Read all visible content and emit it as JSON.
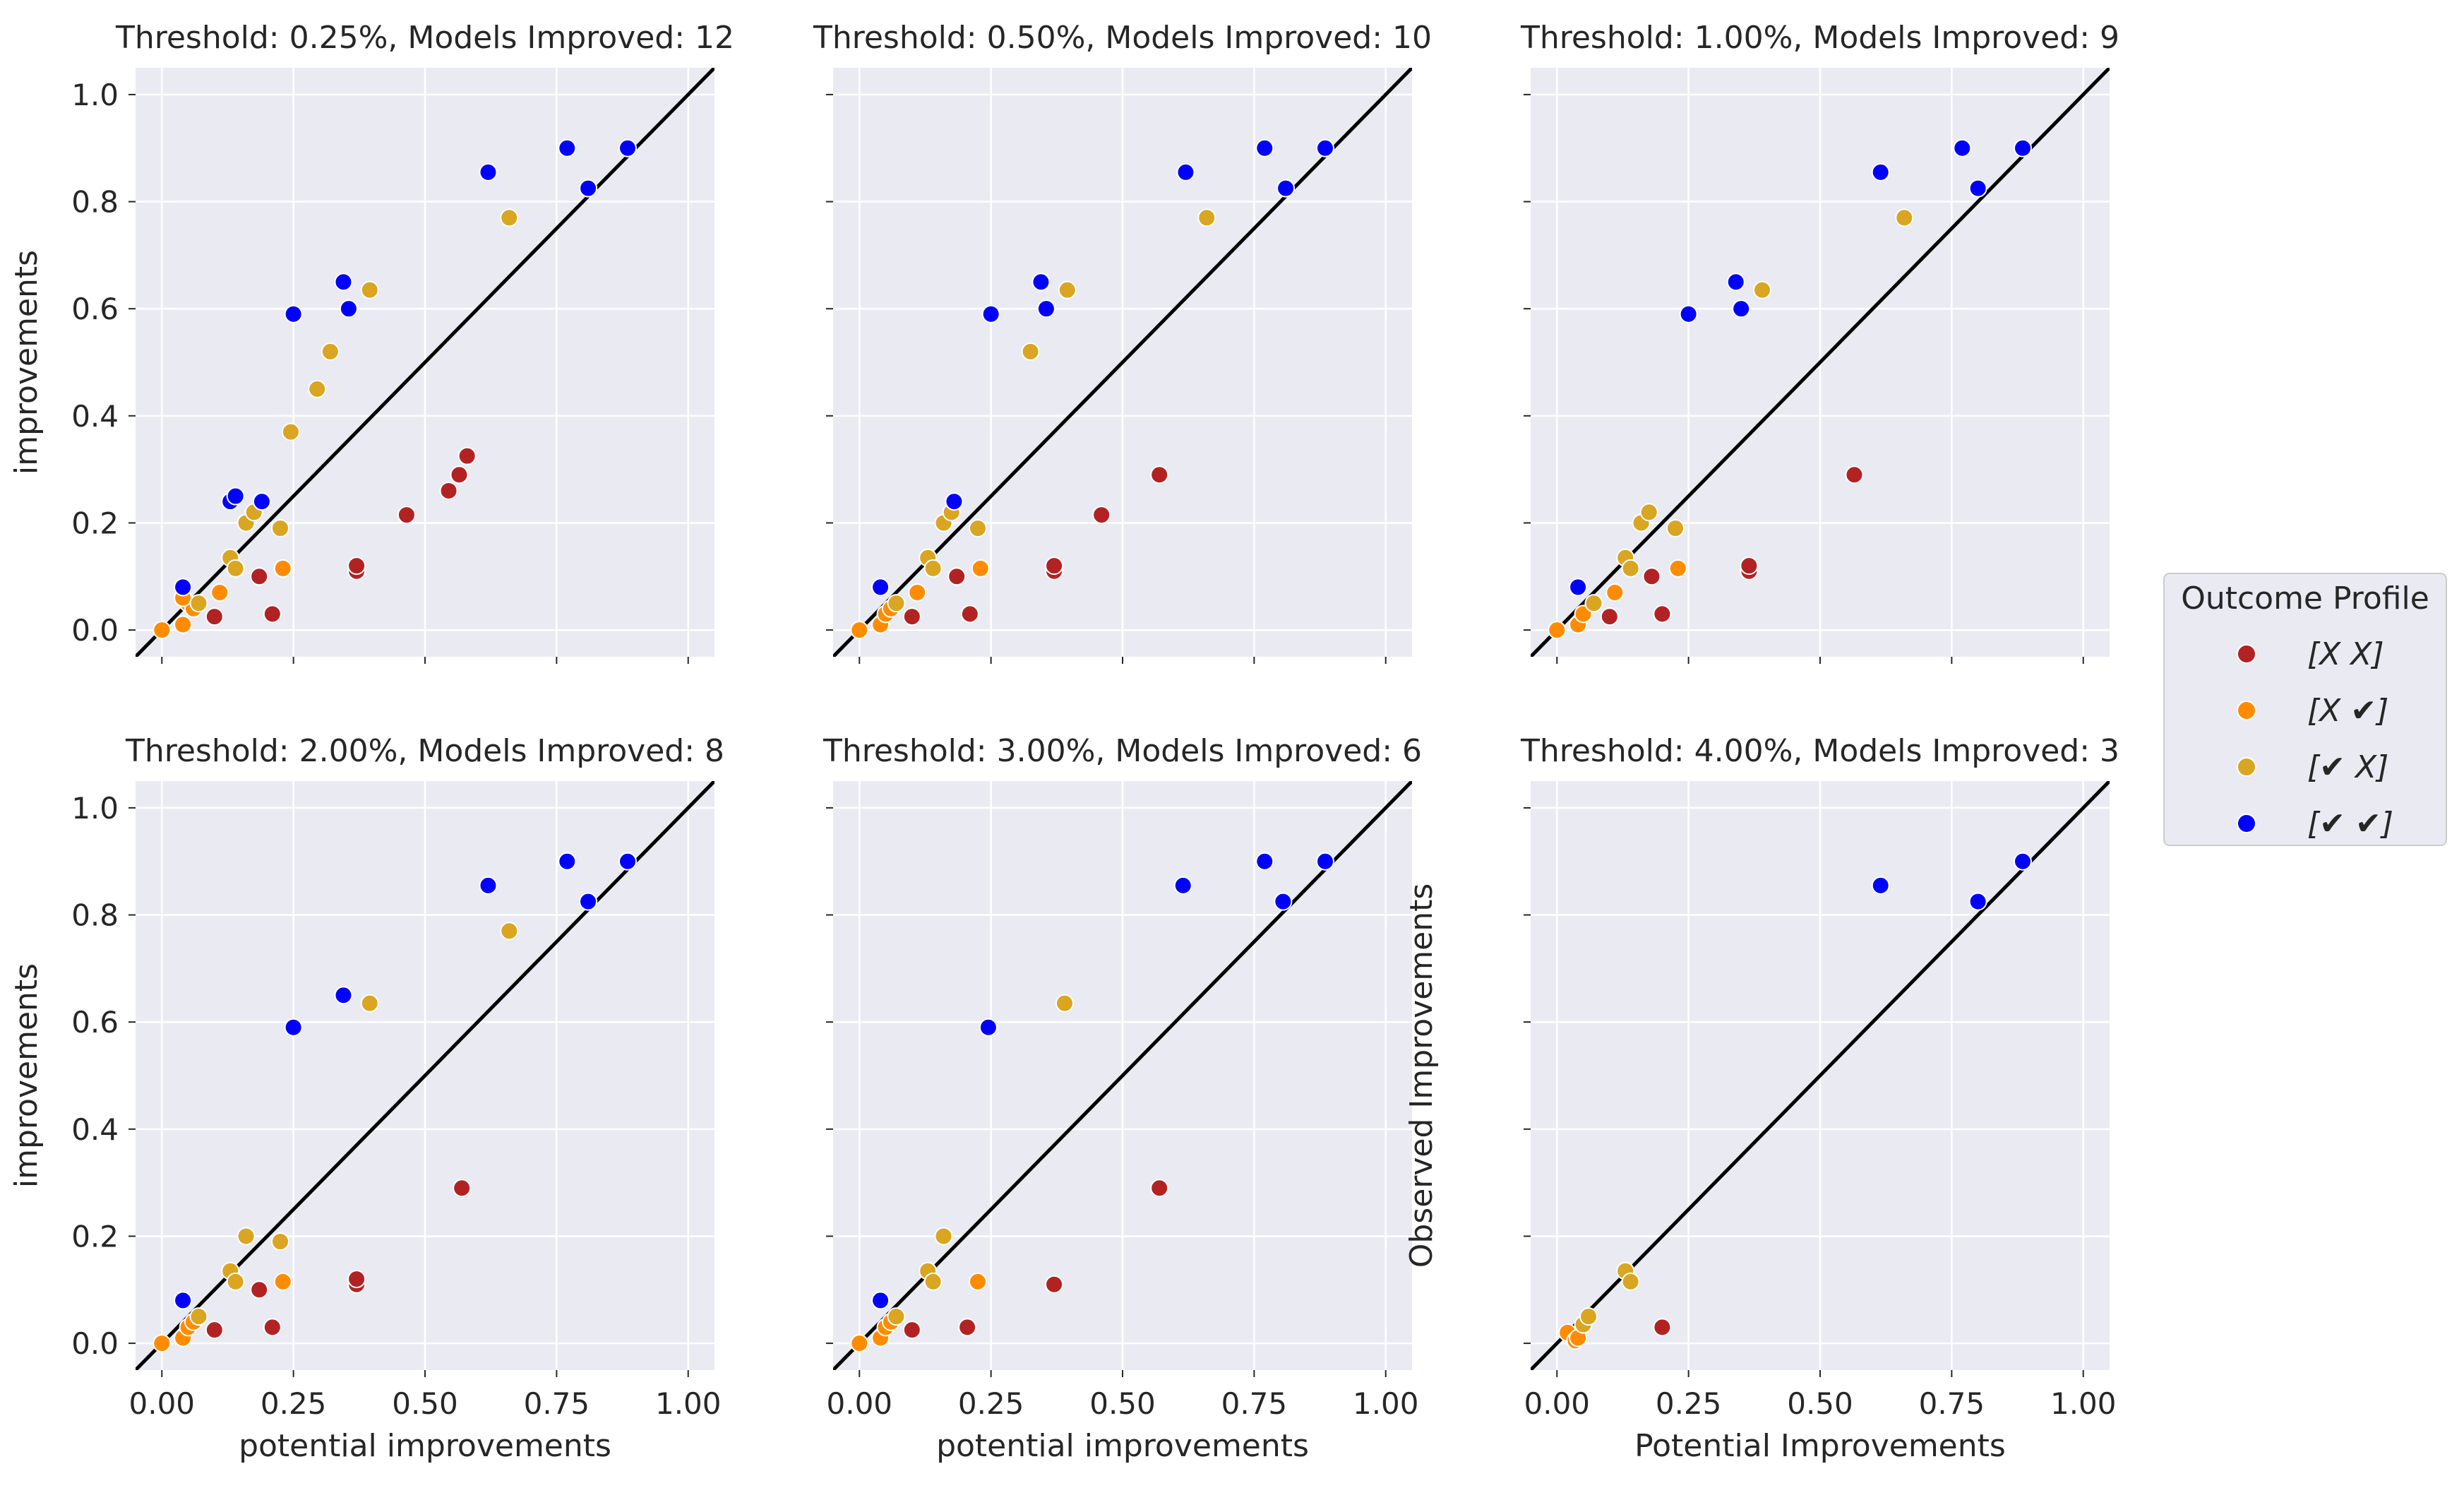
{
  "chart_data": {
    "type": "scatter",
    "figure_layout": "2x3 facet grid",
    "shared_ticks": [
      0.0,
      0.25,
      0.5,
      0.75,
      1.0
    ],
    "x_tick_labels": [
      "0.00",
      "0.25",
      "0.50",
      "0.75",
      "1.00"
    ],
    "y_tick_labels": [
      "0.0",
      "0.2",
      "0.4",
      "0.6",
      "0.8",
      "1.0"
    ],
    "y_ticks": [
      0.0,
      0.2,
      0.4,
      0.6,
      0.8,
      1.0
    ],
    "xlim": [
      -0.05,
      1.05
    ],
    "ylim": [
      -0.05,
      1.05
    ],
    "reference_line": "y = x",
    "legend": {
      "title": "Outcome Profile",
      "position": "right",
      "entries": [
        {
          "key": "xx",
          "label": "[X X]",
          "color": "#b22222"
        },
        {
          "key": "xc",
          "label": "[X ✔]",
          "color": "#ff8c00"
        },
        {
          "key": "cx",
          "label": "[✔ X]",
          "color": "#daa520"
        },
        {
          "key": "cc",
          "label": "[✔ ✔]",
          "color": "#0000ff"
        }
      ]
    },
    "panels": [
      {
        "title": "Threshold: 0.25%, Models Improved: 12",
        "xlabel": "",
        "ylabel": "improvements",
        "points": [
          {
            "x": 0.0,
            "y": 0.0,
            "c": "xc"
          },
          {
            "x": 0.04,
            "y": 0.01,
            "c": "xc"
          },
          {
            "x": 0.05,
            "y": 0.05,
            "c": "xc"
          },
          {
            "x": 0.06,
            "y": 0.04,
            "c": "xc"
          },
          {
            "x": 0.04,
            "y": 0.06,
            "c": "xc"
          },
          {
            "x": 0.11,
            "y": 0.07,
            "c": "xc"
          },
          {
            "x": 0.23,
            "y": 0.115,
            "c": "xc"
          },
          {
            "x": 0.07,
            "y": 0.05,
            "c": "cx"
          },
          {
            "x": 0.13,
            "y": 0.135,
            "c": "cx"
          },
          {
            "x": 0.14,
            "y": 0.115,
            "c": "cx"
          },
          {
            "x": 0.16,
            "y": 0.2,
            "c": "cx"
          },
          {
            "x": 0.175,
            "y": 0.22,
            "c": "cx"
          },
          {
            "x": 0.225,
            "y": 0.19,
            "c": "cx"
          },
          {
            "x": 0.245,
            "y": 0.37,
            "c": "cx"
          },
          {
            "x": 0.295,
            "y": 0.45,
            "c": "cx"
          },
          {
            "x": 0.32,
            "y": 0.52,
            "c": "cx"
          },
          {
            "x": 0.395,
            "y": 0.635,
            "c": "cx"
          },
          {
            "x": 0.66,
            "y": 0.77,
            "c": "cx"
          },
          {
            "x": 0.1,
            "y": 0.025,
            "c": "xx"
          },
          {
            "x": 0.185,
            "y": 0.1,
            "c": "xx"
          },
          {
            "x": 0.21,
            "y": 0.03,
            "c": "xx"
          },
          {
            "x": 0.37,
            "y": 0.11,
            "c": "xx"
          },
          {
            "x": 0.37,
            "y": 0.12,
            "c": "xx"
          },
          {
            "x": 0.465,
            "y": 0.215,
            "c": "xx"
          },
          {
            "x": 0.545,
            "y": 0.26,
            "c": "xx"
          },
          {
            "x": 0.565,
            "y": 0.29,
            "c": "xx"
          },
          {
            "x": 0.58,
            "y": 0.325,
            "c": "xx"
          },
          {
            "x": 0.04,
            "y": 0.08,
            "c": "cc"
          },
          {
            "x": 0.13,
            "y": 0.24,
            "c": "cc"
          },
          {
            "x": 0.14,
            "y": 0.25,
            "c": "cc"
          },
          {
            "x": 0.19,
            "y": 0.24,
            "c": "cc"
          },
          {
            "x": 0.25,
            "y": 0.59,
            "c": "cc"
          },
          {
            "x": 0.345,
            "y": 0.65,
            "c": "cc"
          },
          {
            "x": 0.355,
            "y": 0.6,
            "c": "cc"
          },
          {
            "x": 0.62,
            "y": 0.855,
            "c": "cc"
          },
          {
            "x": 0.77,
            "y": 0.9,
            "c": "cc"
          },
          {
            "x": 0.81,
            "y": 0.825,
            "c": "cc"
          },
          {
            "x": 0.885,
            "y": 0.9,
            "c": "cc"
          }
        ]
      },
      {
        "title": "Threshold: 0.50%, Models Improved: 10",
        "xlabel": "",
        "ylabel": "",
        "points": [
          {
            "x": 0.0,
            "y": 0.0,
            "c": "xc"
          },
          {
            "x": 0.04,
            "y": 0.01,
            "c": "xc"
          },
          {
            "x": 0.05,
            "y": 0.03,
            "c": "xc"
          },
          {
            "x": 0.06,
            "y": 0.04,
            "c": "xc"
          },
          {
            "x": 0.11,
            "y": 0.07,
            "c": "xc"
          },
          {
            "x": 0.23,
            "y": 0.115,
            "c": "xc"
          },
          {
            "x": 0.07,
            "y": 0.05,
            "c": "cx"
          },
          {
            "x": 0.13,
            "y": 0.135,
            "c": "cx"
          },
          {
            "x": 0.14,
            "y": 0.115,
            "c": "cx"
          },
          {
            "x": 0.16,
            "y": 0.2,
            "c": "cx"
          },
          {
            "x": 0.175,
            "y": 0.22,
            "c": "cx"
          },
          {
            "x": 0.225,
            "y": 0.19,
            "c": "cx"
          },
          {
            "x": 0.325,
            "y": 0.52,
            "c": "cx"
          },
          {
            "x": 0.395,
            "y": 0.635,
            "c": "cx"
          },
          {
            "x": 0.66,
            "y": 0.77,
            "c": "cx"
          },
          {
            "x": 0.1,
            "y": 0.025,
            "c": "xx"
          },
          {
            "x": 0.185,
            "y": 0.1,
            "c": "xx"
          },
          {
            "x": 0.21,
            "y": 0.03,
            "c": "xx"
          },
          {
            "x": 0.37,
            "y": 0.11,
            "c": "xx"
          },
          {
            "x": 0.37,
            "y": 0.12,
            "c": "xx"
          },
          {
            "x": 0.46,
            "y": 0.215,
            "c": "xx"
          },
          {
            "x": 0.57,
            "y": 0.29,
            "c": "xx"
          },
          {
            "x": 0.04,
            "y": 0.08,
            "c": "cc"
          },
          {
            "x": 0.18,
            "y": 0.24,
            "c": "cc"
          },
          {
            "x": 0.25,
            "y": 0.59,
            "c": "cc"
          },
          {
            "x": 0.345,
            "y": 0.65,
            "c": "cc"
          },
          {
            "x": 0.355,
            "y": 0.6,
            "c": "cc"
          },
          {
            "x": 0.62,
            "y": 0.855,
            "c": "cc"
          },
          {
            "x": 0.77,
            "y": 0.9,
            "c": "cc"
          },
          {
            "x": 0.81,
            "y": 0.825,
            "c": "cc"
          },
          {
            "x": 0.885,
            "y": 0.9,
            "c": "cc"
          }
        ]
      },
      {
        "title": "Threshold: 1.00%, Models Improved: 9",
        "xlabel": "",
        "ylabel": "",
        "points": [
          {
            "x": 0.0,
            "y": 0.0,
            "c": "xc"
          },
          {
            "x": 0.04,
            "y": 0.01,
            "c": "xc"
          },
          {
            "x": 0.05,
            "y": 0.03,
            "c": "xc"
          },
          {
            "x": 0.11,
            "y": 0.07,
            "c": "xc"
          },
          {
            "x": 0.23,
            "y": 0.115,
            "c": "xc"
          },
          {
            "x": 0.07,
            "y": 0.05,
            "c": "cx"
          },
          {
            "x": 0.13,
            "y": 0.135,
            "c": "cx"
          },
          {
            "x": 0.14,
            "y": 0.115,
            "c": "cx"
          },
          {
            "x": 0.16,
            "y": 0.2,
            "c": "cx"
          },
          {
            "x": 0.175,
            "y": 0.22,
            "c": "cx"
          },
          {
            "x": 0.225,
            "y": 0.19,
            "c": "cx"
          },
          {
            "x": 0.39,
            "y": 0.635,
            "c": "cx"
          },
          {
            "x": 0.66,
            "y": 0.77,
            "c": "cx"
          },
          {
            "x": 0.1,
            "y": 0.025,
            "c": "xx"
          },
          {
            "x": 0.18,
            "y": 0.1,
            "c": "xx"
          },
          {
            "x": 0.2,
            "y": 0.03,
            "c": "xx"
          },
          {
            "x": 0.365,
            "y": 0.11,
            "c": "xx"
          },
          {
            "x": 0.365,
            "y": 0.12,
            "c": "xx"
          },
          {
            "x": 0.565,
            "y": 0.29,
            "c": "xx"
          },
          {
            "x": 0.04,
            "y": 0.08,
            "c": "cc"
          },
          {
            "x": 0.25,
            "y": 0.59,
            "c": "cc"
          },
          {
            "x": 0.34,
            "y": 0.65,
            "c": "cc"
          },
          {
            "x": 0.35,
            "y": 0.6,
            "c": "cc"
          },
          {
            "x": 0.615,
            "y": 0.855,
            "c": "cc"
          },
          {
            "x": 0.77,
            "y": 0.9,
            "c": "cc"
          },
          {
            "x": 0.8,
            "y": 0.825,
            "c": "cc"
          },
          {
            "x": 0.885,
            "y": 0.9,
            "c": "cc"
          }
        ]
      },
      {
        "title": "Threshold: 2.00%, Models Improved: 8",
        "xlabel": "potential improvements",
        "ylabel": "improvements",
        "points": [
          {
            "x": 0.0,
            "y": 0.0,
            "c": "xc"
          },
          {
            "x": 0.04,
            "y": 0.01,
            "c": "xc"
          },
          {
            "x": 0.05,
            "y": 0.03,
            "c": "xc"
          },
          {
            "x": 0.06,
            "y": 0.04,
            "c": "xc"
          },
          {
            "x": 0.23,
            "y": 0.115,
            "c": "xc"
          },
          {
            "x": 0.07,
            "y": 0.05,
            "c": "cx"
          },
          {
            "x": 0.13,
            "y": 0.135,
            "c": "cx"
          },
          {
            "x": 0.14,
            "y": 0.115,
            "c": "cx"
          },
          {
            "x": 0.16,
            "y": 0.2,
            "c": "cx"
          },
          {
            "x": 0.225,
            "y": 0.19,
            "c": "cx"
          },
          {
            "x": 0.395,
            "y": 0.635,
            "c": "cx"
          },
          {
            "x": 0.66,
            "y": 0.77,
            "c": "cx"
          },
          {
            "x": 0.1,
            "y": 0.025,
            "c": "xx"
          },
          {
            "x": 0.185,
            "y": 0.1,
            "c": "xx"
          },
          {
            "x": 0.21,
            "y": 0.03,
            "c": "xx"
          },
          {
            "x": 0.37,
            "y": 0.11,
            "c": "xx"
          },
          {
            "x": 0.37,
            "y": 0.12,
            "c": "xx"
          },
          {
            "x": 0.57,
            "y": 0.29,
            "c": "xx"
          },
          {
            "x": 0.04,
            "y": 0.08,
            "c": "cc"
          },
          {
            "x": 0.25,
            "y": 0.59,
            "c": "cc"
          },
          {
            "x": 0.345,
            "y": 0.65,
            "c": "cc"
          },
          {
            "x": 0.62,
            "y": 0.855,
            "c": "cc"
          },
          {
            "x": 0.77,
            "y": 0.9,
            "c": "cc"
          },
          {
            "x": 0.81,
            "y": 0.825,
            "c": "cc"
          },
          {
            "x": 0.885,
            "y": 0.9,
            "c": "cc"
          }
        ]
      },
      {
        "title": "Threshold: 3.00%, Models Improved: 6",
        "xlabel": "potential improvements",
        "ylabel": "",
        "points": [
          {
            "x": 0.0,
            "y": 0.0,
            "c": "xc"
          },
          {
            "x": 0.04,
            "y": 0.01,
            "c": "xc"
          },
          {
            "x": 0.05,
            "y": 0.03,
            "c": "xc"
          },
          {
            "x": 0.06,
            "y": 0.04,
            "c": "xc"
          },
          {
            "x": 0.225,
            "y": 0.115,
            "c": "xc"
          },
          {
            "x": 0.07,
            "y": 0.05,
            "c": "cx"
          },
          {
            "x": 0.13,
            "y": 0.135,
            "c": "cx"
          },
          {
            "x": 0.14,
            "y": 0.115,
            "c": "cx"
          },
          {
            "x": 0.16,
            "y": 0.2,
            "c": "cx"
          },
          {
            "x": 0.39,
            "y": 0.635,
            "c": "cx"
          },
          {
            "x": 0.1,
            "y": 0.025,
            "c": "xx"
          },
          {
            "x": 0.205,
            "y": 0.03,
            "c": "xx"
          },
          {
            "x": 0.37,
            "y": 0.11,
            "c": "xx"
          },
          {
            "x": 0.57,
            "y": 0.29,
            "c": "xx"
          },
          {
            "x": 0.04,
            "y": 0.08,
            "c": "cc"
          },
          {
            "x": 0.245,
            "y": 0.59,
            "c": "cc"
          },
          {
            "x": 0.615,
            "y": 0.855,
            "c": "cc"
          },
          {
            "x": 0.77,
            "y": 0.9,
            "c": "cc"
          },
          {
            "x": 0.805,
            "y": 0.825,
            "c": "cc"
          },
          {
            "x": 0.885,
            "y": 0.9,
            "c": "cc"
          }
        ]
      },
      {
        "title": "Threshold: 4.00%, Models Improved: 3",
        "xlabel": "Potential Improvements",
        "ylabel": "Observed Improvements",
        "points": [
          {
            "x": 0.02,
            "y": 0.02,
            "c": "xc"
          },
          {
            "x": 0.035,
            "y": 0.005,
            "c": "xc"
          },
          {
            "x": 0.04,
            "y": 0.01,
            "c": "xc"
          },
          {
            "x": 0.05,
            "y": 0.035,
            "c": "cx"
          },
          {
            "x": 0.06,
            "y": 0.05,
            "c": "cx"
          },
          {
            "x": 0.13,
            "y": 0.135,
            "c": "cx"
          },
          {
            "x": 0.14,
            "y": 0.115,
            "c": "cx"
          },
          {
            "x": 0.2,
            "y": 0.03,
            "c": "xx"
          },
          {
            "x": 0.615,
            "y": 0.855,
            "c": "cc"
          },
          {
            "x": 0.8,
            "y": 0.825,
            "c": "cc"
          },
          {
            "x": 0.885,
            "y": 0.9,
            "c": "cc"
          }
        ]
      }
    ]
  }
}
